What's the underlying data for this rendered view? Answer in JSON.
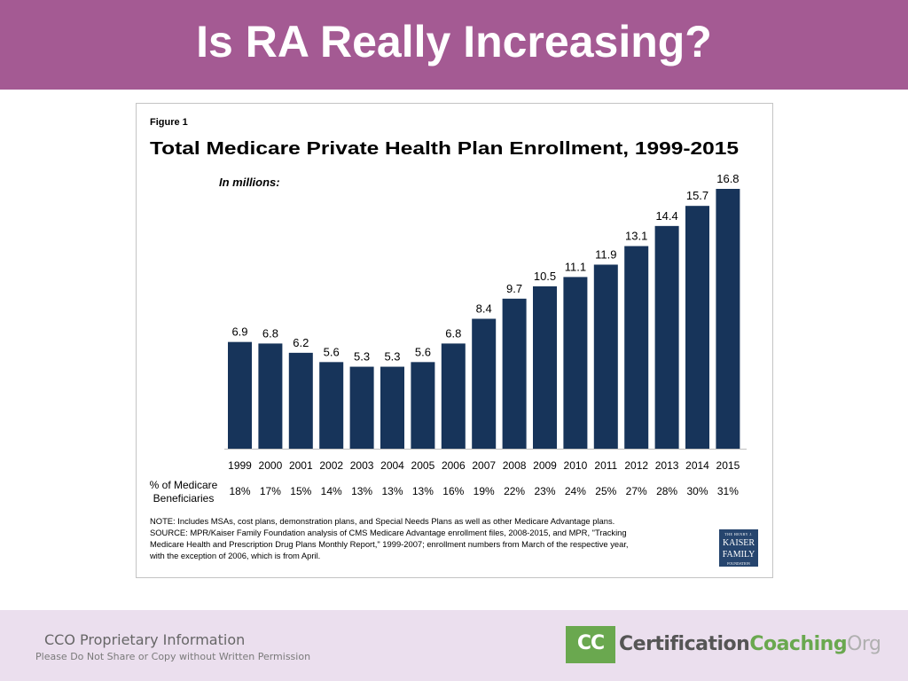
{
  "slide": {
    "title": "Is RA Really Increasing?"
  },
  "figure": {
    "label": "Figure 1",
    "title": "Total Medicare Private Health Plan Enrollment, 1999-2015",
    "units_note": "In millions:",
    "pct_header": [
      "% of Medicare",
      "Beneficiaries"
    ],
    "note_lines": [
      "NOTE:  Includes MSAs, cost plans, demonstration plans, and Special Needs Plans as well as other Medicare Advantage plans.",
      "SOURCE:  MPR/Kaiser Family Foundation analysis of CMS Medicare Advantage enrollment files, 2008-2015, and MPR, \"Tracking",
      "Medicare Health and Prescription Drug Plans Monthly Report,\" 1999-2007; enrollment numbers from March of the respective year,",
      "with the exception of 2006, which is from April."
    ],
    "logo": {
      "top": "THE HENRY J.",
      "mid1": "KAISER",
      "mid2": "FAMILY",
      "bottom": "FOUNDATION"
    }
  },
  "chart_data": {
    "type": "bar",
    "title": "Total Medicare Private Health Plan Enrollment, 1999-2015",
    "ylabel": "In millions:",
    "xlabel": "",
    "categories": [
      "1999",
      "2000",
      "2001",
      "2002",
      "2003",
      "2004",
      "2005",
      "2006",
      "2007",
      "2008",
      "2009",
      "2010",
      "2011",
      "2012",
      "2013",
      "2014",
      "2015"
    ],
    "values": [
      6.9,
      6.8,
      6.2,
      5.6,
      5.3,
      5.3,
      5.6,
      6.8,
      8.4,
      9.7,
      10.5,
      11.1,
      11.9,
      13.1,
      14.4,
      15.7,
      16.8
    ],
    "data_labels": [
      "6.9",
      "6.8",
      "6.2",
      "5.6",
      "5.3",
      "5.3",
      "5.6",
      "6.8",
      "8.4",
      "9.7",
      "10.5",
      "11.1",
      "11.9",
      "13.1",
      "14.4",
      "15.7",
      "16.8"
    ],
    "pct_of_beneficiaries": [
      "18%",
      "17%",
      "15%",
      "14%",
      "13%",
      "13%",
      "13%",
      "16%",
      "19%",
      "22%",
      "23%",
      "24%",
      "25%",
      "27%",
      "28%",
      "30%",
      "31%"
    ],
    "ylim": [
      0,
      16.8
    ],
    "grid": false,
    "bar_color": "#17345a"
  },
  "footer": {
    "proprietary_title": "CCO Proprietary Information",
    "proprietary_sub": "Please Do Not Share or Copy without Written Permission",
    "logo_mark": "CC",
    "logo_word_a": "Certification",
    "logo_word_b": "Coaching",
    "logo_word_c": "Org"
  },
  "colors": {
    "banner": "#a45a93",
    "footer_bg": "#ebdfee",
    "bar": "#17345a",
    "logo_green": "#6aa84f"
  }
}
